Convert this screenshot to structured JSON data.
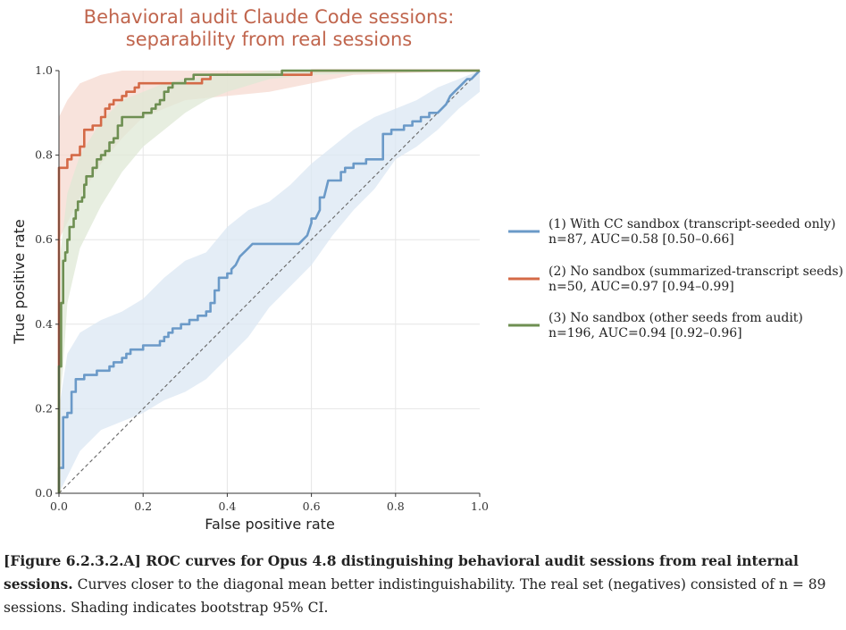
{
  "chart_data": {
    "type": "line",
    "title": [
      "Behavioral audit Claude Code sessions:",
      "separability from real sessions"
    ],
    "xlabel": "False positive rate",
    "ylabel": "True positive rate",
    "xlim": [
      0.0,
      1.0
    ],
    "ylim": [
      0.0,
      1.0
    ],
    "xticks": [
      "0.0",
      "0.2",
      "0.4",
      "0.6",
      "0.8",
      "1.0"
    ],
    "yticks": [
      "0.0",
      "0.2",
      "0.4",
      "0.6",
      "0.8",
      "1.0"
    ],
    "grid": true,
    "legend_position": "right",
    "colors": {
      "title": "#c0654d",
      "diagonal": "#666666",
      "grid": "#e6e6e6"
    },
    "series": [
      {
        "name": "(1) With CC sandbox (transcript-seeded only)",
        "stats": "n=87, AUC=0.58 [0.50–0.66]",
        "color": "#6b9ac8",
        "band_color": "#dbe7f3",
        "points": [
          [
            0,
            0
          ],
          [
            0,
            0.06
          ],
          [
            0.01,
            0.06
          ],
          [
            0.01,
            0.18
          ],
          [
            0.02,
            0.18
          ],
          [
            0.02,
            0.19
          ],
          [
            0.03,
            0.19
          ],
          [
            0.03,
            0.24
          ],
          [
            0.04,
            0.24
          ],
          [
            0.04,
            0.26
          ],
          [
            0.04,
            0.27
          ],
          [
            0.06,
            0.27
          ],
          [
            0.06,
            0.28
          ],
          [
            0.09,
            0.28
          ],
          [
            0.09,
            0.29
          ],
          [
            0.12,
            0.29
          ],
          [
            0.12,
            0.3
          ],
          [
            0.13,
            0.3
          ],
          [
            0.13,
            0.31
          ],
          [
            0.15,
            0.31
          ],
          [
            0.15,
            0.32
          ],
          [
            0.16,
            0.32
          ],
          [
            0.16,
            0.33
          ],
          [
            0.17,
            0.33
          ],
          [
            0.17,
            0.34
          ],
          [
            0.2,
            0.34
          ],
          [
            0.2,
            0.35
          ],
          [
            0.24,
            0.35
          ],
          [
            0.24,
            0.36
          ],
          [
            0.25,
            0.36
          ],
          [
            0.25,
            0.37
          ],
          [
            0.26,
            0.37
          ],
          [
            0.26,
            0.38
          ],
          [
            0.27,
            0.38
          ],
          [
            0.27,
            0.39
          ],
          [
            0.29,
            0.39
          ],
          [
            0.29,
            0.4
          ],
          [
            0.31,
            0.4
          ],
          [
            0.31,
            0.41
          ],
          [
            0.32,
            0.41
          ],
          [
            0.33,
            0.41
          ],
          [
            0.33,
            0.42
          ],
          [
            0.35,
            0.42
          ],
          [
            0.35,
            0.43
          ],
          [
            0.36,
            0.43
          ],
          [
            0.36,
            0.45
          ],
          [
            0.37,
            0.45
          ],
          [
            0.37,
            0.48
          ],
          [
            0.38,
            0.48
          ],
          [
            0.38,
            0.51
          ],
          [
            0.4,
            0.51
          ],
          [
            0.4,
            0.52
          ],
          [
            0.41,
            0.52
          ],
          [
            0.41,
            0.53
          ],
          [
            0.42,
            0.54
          ],
          [
            0.43,
            0.56
          ],
          [
            0.44,
            0.57
          ],
          [
            0.45,
            0.58
          ],
          [
            0.46,
            0.59
          ],
          [
            0.52,
            0.59
          ],
          [
            0.55,
            0.59
          ],
          [
            0.56,
            0.59
          ],
          [
            0.57,
            0.59
          ],
          [
            0.58,
            0.6
          ],
          [
            0.59,
            0.61
          ],
          [
            0.6,
            0.64
          ],
          [
            0.6,
            0.65
          ],
          [
            0.61,
            0.65
          ],
          [
            0.62,
            0.67
          ],
          [
            0.62,
            0.7
          ],
          [
            0.63,
            0.7
          ],
          [
            0.64,
            0.74
          ],
          [
            0.67,
            0.74
          ],
          [
            0.67,
            0.76
          ],
          [
            0.68,
            0.76
          ],
          [
            0.68,
            0.77
          ],
          [
            0.7,
            0.77
          ],
          [
            0.7,
            0.78
          ],
          [
            0.73,
            0.78
          ],
          [
            0.73,
            0.79
          ],
          [
            0.77,
            0.79
          ],
          [
            0.77,
            0.85
          ],
          [
            0.79,
            0.85
          ],
          [
            0.79,
            0.86
          ],
          [
            0.82,
            0.86
          ],
          [
            0.82,
            0.87
          ],
          [
            0.84,
            0.87
          ],
          [
            0.84,
            0.88
          ],
          [
            0.86,
            0.88
          ],
          [
            0.86,
            0.89
          ],
          [
            0.88,
            0.89
          ],
          [
            0.88,
            0.9
          ],
          [
            0.9,
            0.9
          ],
          [
            0.91,
            0.91
          ],
          [
            0.92,
            0.92
          ],
          [
            0.93,
            0.94
          ],
          [
            0.94,
            0.95
          ],
          [
            0.95,
            0.96
          ],
          [
            0.96,
            0.97
          ],
          [
            0.97,
            0.98
          ],
          [
            0.98,
            0.98
          ],
          [
            0.99,
            0.99
          ],
          [
            1.0,
            1.0
          ]
        ],
        "band_upper": [
          [
            0,
            0.2
          ],
          [
            0.02,
            0.33
          ],
          [
            0.05,
            0.38
          ],
          [
            0.1,
            0.41
          ],
          [
            0.15,
            0.43
          ],
          [
            0.2,
            0.46
          ],
          [
            0.25,
            0.51
          ],
          [
            0.3,
            0.55
          ],
          [
            0.35,
            0.57
          ],
          [
            0.4,
            0.63
          ],
          [
            0.45,
            0.67
          ],
          [
            0.5,
            0.69
          ],
          [
            0.55,
            0.73
          ],
          [
            0.6,
            0.78
          ],
          [
            0.65,
            0.82
          ],
          [
            0.7,
            0.86
          ],
          [
            0.75,
            0.89
          ],
          [
            0.8,
            0.91
          ],
          [
            0.85,
            0.93
          ],
          [
            0.9,
            0.96
          ],
          [
            0.95,
            0.98
          ],
          [
            1.0,
            1.0
          ]
        ],
        "band_lower": [
          [
            1.0,
            0.95
          ],
          [
            0.95,
            0.91
          ],
          [
            0.9,
            0.86
          ],
          [
            0.85,
            0.82
          ],
          [
            0.8,
            0.79
          ],
          [
            0.75,
            0.72
          ],
          [
            0.7,
            0.67
          ],
          [
            0.65,
            0.61
          ],
          [
            0.6,
            0.54
          ],
          [
            0.55,
            0.49
          ],
          [
            0.5,
            0.44
          ],
          [
            0.45,
            0.37
          ],
          [
            0.4,
            0.32
          ],
          [
            0.35,
            0.27
          ],
          [
            0.3,
            0.24
          ],
          [
            0.25,
            0.22
          ],
          [
            0.2,
            0.19
          ],
          [
            0.15,
            0.17
          ],
          [
            0.1,
            0.15
          ],
          [
            0.05,
            0.1
          ],
          [
            0.02,
            0.04
          ],
          [
            0,
            0
          ]
        ]
      },
      {
        "name": "(2) No sandbox (summarized-transcript seeds)",
        "stats": "n=50, AUC=0.97 [0.94–0.99]",
        "color": "#d46a47",
        "band_color": "#f5dad0",
        "points": [
          [
            0,
            0
          ],
          [
            0,
            0.77
          ],
          [
            0.02,
            0.77
          ],
          [
            0.02,
            0.79
          ],
          [
            0.03,
            0.79
          ],
          [
            0.03,
            0.8
          ],
          [
            0.05,
            0.8
          ],
          [
            0.05,
            0.82
          ],
          [
            0.06,
            0.82
          ],
          [
            0.06,
            0.86
          ],
          [
            0.08,
            0.86
          ],
          [
            0.08,
            0.87
          ],
          [
            0.1,
            0.87
          ],
          [
            0.1,
            0.89
          ],
          [
            0.11,
            0.89
          ],
          [
            0.11,
            0.91
          ],
          [
            0.12,
            0.91
          ],
          [
            0.12,
            0.92
          ],
          [
            0.13,
            0.92
          ],
          [
            0.13,
            0.93
          ],
          [
            0.15,
            0.93
          ],
          [
            0.15,
            0.94
          ],
          [
            0.16,
            0.94
          ],
          [
            0.16,
            0.95
          ],
          [
            0.18,
            0.95
          ],
          [
            0.18,
            0.96
          ],
          [
            0.19,
            0.96
          ],
          [
            0.19,
            0.97
          ],
          [
            0.34,
            0.97
          ],
          [
            0.34,
            0.98
          ],
          [
            0.36,
            0.98
          ],
          [
            0.36,
            0.99
          ],
          [
            0.6,
            0.99
          ],
          [
            0.6,
            1.0
          ],
          [
            1.0,
            1.0
          ]
        ],
        "band_upper": [
          [
            0,
            0.89
          ],
          [
            0.02,
            0.93
          ],
          [
            0.05,
            0.97
          ],
          [
            0.1,
            0.99
          ],
          [
            0.15,
            1.0
          ],
          [
            0.3,
            1.0
          ],
          [
            0.6,
            1.0
          ],
          [
            1.0,
            1.0
          ]
        ],
        "band_lower": [
          [
            1.0,
            1.0
          ],
          [
            0.7,
            0.99
          ],
          [
            0.6,
            0.97
          ],
          [
            0.5,
            0.95
          ],
          [
            0.4,
            0.94
          ],
          [
            0.3,
            0.93
          ],
          [
            0.25,
            0.91
          ],
          [
            0.2,
            0.89
          ],
          [
            0.15,
            0.84
          ],
          [
            0.1,
            0.78
          ],
          [
            0.05,
            0.7
          ],
          [
            0.02,
            0.64
          ],
          [
            0,
            0.6
          ]
        ]
      },
      {
        "name": "(3) No sandbox (other seeds from audit)",
        "stats": "n=196, AUC=0.94 [0.92–0.96]",
        "color": "#6e8f52",
        "band_color": "#dfe8d6",
        "points": [
          [
            0,
            0
          ],
          [
            0,
            0.3
          ],
          [
            0.005,
            0.3
          ],
          [
            0.005,
            0.45
          ],
          [
            0.01,
            0.45
          ],
          [
            0.01,
            0.55
          ],
          [
            0.015,
            0.55
          ],
          [
            0.015,
            0.57
          ],
          [
            0.02,
            0.57
          ],
          [
            0.02,
            0.6
          ],
          [
            0.025,
            0.6
          ],
          [
            0.025,
            0.63
          ],
          [
            0.035,
            0.63
          ],
          [
            0.035,
            0.65
          ],
          [
            0.04,
            0.65
          ],
          [
            0.04,
            0.67
          ],
          [
            0.045,
            0.67
          ],
          [
            0.045,
            0.69
          ],
          [
            0.055,
            0.69
          ],
          [
            0.055,
            0.7
          ],
          [
            0.06,
            0.7
          ],
          [
            0.06,
            0.73
          ],
          [
            0.065,
            0.73
          ],
          [
            0.065,
            0.75
          ],
          [
            0.08,
            0.75
          ],
          [
            0.08,
            0.77
          ],
          [
            0.09,
            0.77
          ],
          [
            0.09,
            0.79
          ],
          [
            0.1,
            0.79
          ],
          [
            0.1,
            0.8
          ],
          [
            0.11,
            0.8
          ],
          [
            0.11,
            0.81
          ],
          [
            0.12,
            0.81
          ],
          [
            0.12,
            0.83
          ],
          [
            0.13,
            0.83
          ],
          [
            0.13,
            0.84
          ],
          [
            0.14,
            0.84
          ],
          [
            0.14,
            0.87
          ],
          [
            0.15,
            0.87
          ],
          [
            0.15,
            0.89
          ],
          [
            0.2,
            0.89
          ],
          [
            0.2,
            0.9
          ],
          [
            0.22,
            0.9
          ],
          [
            0.22,
            0.91
          ],
          [
            0.23,
            0.91
          ],
          [
            0.23,
            0.92
          ],
          [
            0.24,
            0.92
          ],
          [
            0.24,
            0.93
          ],
          [
            0.25,
            0.93
          ],
          [
            0.25,
            0.95
          ],
          [
            0.26,
            0.95
          ],
          [
            0.26,
            0.96
          ],
          [
            0.27,
            0.96
          ],
          [
            0.27,
            0.97
          ],
          [
            0.3,
            0.97
          ],
          [
            0.3,
            0.98
          ],
          [
            0.32,
            0.98
          ],
          [
            0.32,
            0.99
          ],
          [
            0.53,
            0.99
          ],
          [
            0.53,
            1.0
          ],
          [
            1.0,
            1.0
          ]
        ],
        "band_upper": [
          [
            0,
            0.54
          ],
          [
            0.02,
            0.71
          ],
          [
            0.05,
            0.8
          ],
          [
            0.1,
            0.88
          ],
          [
            0.15,
            0.93
          ],
          [
            0.2,
            0.95
          ],
          [
            0.25,
            0.97
          ],
          [
            0.3,
            0.98
          ],
          [
            0.4,
            0.99
          ],
          [
            0.5,
            1.0
          ],
          [
            1.0,
            1.0
          ]
        ],
        "band_lower": [
          [
            1.0,
            1.0
          ],
          [
            0.6,
            0.99
          ],
          [
            0.5,
            0.98
          ],
          [
            0.4,
            0.95
          ],
          [
            0.35,
            0.93
          ],
          [
            0.3,
            0.9
          ],
          [
            0.25,
            0.86
          ],
          [
            0.2,
            0.82
          ],
          [
            0.15,
            0.76
          ],
          [
            0.1,
            0.68
          ],
          [
            0.05,
            0.58
          ],
          [
            0.02,
            0.45
          ],
          [
            0.01,
            0.3
          ],
          [
            0,
            0.2
          ]
        ]
      }
    ]
  },
  "caption": {
    "bold": "[Figure 6.2.3.2.A] ROC curves for Opus 4.8 distinguishing behavioral audit sessions from real internal sessions.",
    "text": " Curves closer to the diagonal mean better indistinguishability. The real set (negatives) consisted of n = 89 sessions. Shading indicates bootstrap 95% CI."
  }
}
